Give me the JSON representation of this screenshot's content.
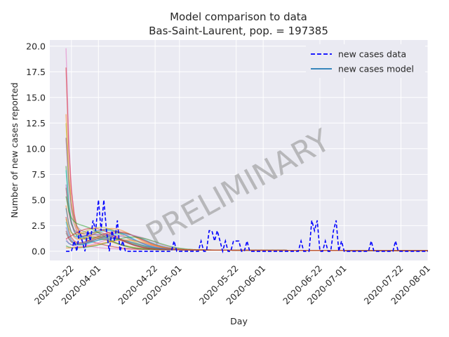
{
  "chart_data": {
    "type": "line",
    "title_line1": "Model comparison to data",
    "title_line2": "Bas-Saint-Laurent, pop. = 197385",
    "xlabel": "Day",
    "ylabel": "Number of new cases reported",
    "watermark": "PRELIMINARY",
    "x_start": "2020-03-14",
    "x_end": "2020-08-01",
    "ylim": [
      -0.9,
      20.6
    ],
    "y_ticks": [
      "0.0",
      "2.5",
      "5.0",
      "7.5",
      "10.0",
      "12.5",
      "15.0",
      "17.5",
      "20.0"
    ],
    "x_ticks": [
      "2020-03-22",
      "2020-04-01",
      "2020-04-22",
      "2020-05-01",
      "2020-05-22",
      "2020-06-01",
      "2020-06-22",
      "2020-07-01",
      "2020-07-22",
      "2020-08-01"
    ],
    "grid": true,
    "legend_position": "top-right",
    "legend": [
      {
        "label": "new cases data",
        "style": "dashed",
        "color": "#0000ff"
      },
      {
        "label": "new cases model",
        "style": "solid",
        "color": "#1f77b4"
      }
    ],
    "data_series": {
      "name": "new cases data",
      "color": "#0000ff",
      "points": [
        [
          "2020-03-20",
          0
        ],
        [
          "2020-03-21",
          0
        ],
        [
          "2020-03-22",
          0
        ],
        [
          "2020-03-23",
          1
        ],
        [
          "2020-03-24",
          0
        ],
        [
          "2020-03-25",
          2
        ],
        [
          "2020-03-26",
          1
        ],
        [
          "2020-03-27",
          0
        ],
        [
          "2020-03-28",
          2
        ],
        [
          "2020-03-29",
          1
        ],
        [
          "2020-03-30",
          3
        ],
        [
          "2020-03-31",
          2
        ],
        [
          "2020-04-01",
          5
        ],
        [
          "2020-04-02",
          2
        ],
        [
          "2020-04-03",
          5
        ],
        [
          "2020-04-04",
          2
        ],
        [
          "2020-04-05",
          0
        ],
        [
          "2020-04-06",
          2
        ],
        [
          "2020-04-07",
          1
        ],
        [
          "2020-04-08",
          3
        ],
        [
          "2020-04-09",
          0
        ],
        [
          "2020-04-10",
          1
        ],
        [
          "2020-04-11",
          0
        ],
        [
          "2020-04-12",
          0
        ],
        [
          "2020-04-13",
          0
        ],
        [
          "2020-04-15",
          0
        ],
        [
          "2020-04-20",
          0
        ],
        [
          "2020-04-25",
          0
        ],
        [
          "2020-04-28",
          0
        ],
        [
          "2020-04-29",
          1
        ],
        [
          "2020-04-30",
          0
        ],
        [
          "2020-05-05",
          0
        ],
        [
          "2020-05-08",
          0
        ],
        [
          "2020-05-09",
          1
        ],
        [
          "2020-05-10",
          0
        ],
        [
          "2020-05-11",
          0
        ],
        [
          "2020-05-12",
          2
        ],
        [
          "2020-05-13",
          2
        ],
        [
          "2020-05-14",
          1
        ],
        [
          "2020-05-15",
          2
        ],
        [
          "2020-05-16",
          1
        ],
        [
          "2020-05-17",
          0
        ],
        [
          "2020-05-18",
          1
        ],
        [
          "2020-05-19",
          0
        ],
        [
          "2020-05-20",
          0
        ],
        [
          "2020-05-21",
          1
        ],
        [
          "2020-05-22",
          1
        ],
        [
          "2020-05-23",
          1
        ],
        [
          "2020-05-24",
          0
        ],
        [
          "2020-05-25",
          0
        ],
        [
          "2020-05-26",
          1
        ],
        [
          "2020-05-27",
          0
        ],
        [
          "2020-06-05",
          0
        ],
        [
          "2020-06-10",
          0
        ],
        [
          "2020-06-14",
          0
        ],
        [
          "2020-06-15",
          1
        ],
        [
          "2020-06-16",
          0
        ],
        [
          "2020-06-18",
          0
        ],
        [
          "2020-06-19",
          3
        ],
        [
          "2020-06-20",
          2
        ],
        [
          "2020-06-21",
          3
        ],
        [
          "2020-06-22",
          0
        ],
        [
          "2020-06-23",
          0
        ],
        [
          "2020-06-24",
          1
        ],
        [
          "2020-06-25",
          0
        ],
        [
          "2020-06-26",
          0
        ],
        [
          "2020-06-27",
          2
        ],
        [
          "2020-06-28",
          3
        ],
        [
          "2020-06-29",
          0
        ],
        [
          "2020-06-30",
          1
        ],
        [
          "2020-07-01",
          0
        ],
        [
          "2020-07-05",
          0
        ],
        [
          "2020-07-10",
          0
        ],
        [
          "2020-07-11",
          1
        ],
        [
          "2020-07-12",
          0
        ],
        [
          "2020-07-17",
          0
        ],
        [
          "2020-07-19",
          0
        ],
        [
          "2020-07-20",
          1
        ],
        [
          "2020-07-21",
          0
        ],
        [
          "2020-07-25",
          0
        ],
        [
          "2020-08-01",
          0
        ]
      ]
    },
    "model_series": {
      "name": "new cases model",
      "color": "#1f77b4",
      "note_fan": "ensemble of model trajectories",
      "trajectories": [
        {
          "color": "#e377c2",
          "start": 19.5,
          "peak": 0.3,
          "peak_day": "2020-03-20"
        },
        {
          "color": "#d62728",
          "start": 17.2,
          "peak": 0.8,
          "peak_day": "2020-03-24"
        },
        {
          "color": "#ff7f0e",
          "start": 12.6,
          "peak": 1.2,
          "peak_day": "2020-03-28"
        },
        {
          "color": "#bcbd22",
          "start": 12.0,
          "peak": 1.0,
          "peak_day": "2020-03-30"
        },
        {
          "color": "#e377c2",
          "start": 10.6,
          "peak": 1.4,
          "peak_day": "2020-04-02"
        },
        {
          "color": "#7f7f7f",
          "start": 10.0,
          "peak": 1.5,
          "peak_day": "2020-03-27"
        },
        {
          "color": "#2ca02c",
          "start": 8.0,
          "peak": 1.2,
          "peak_day": "2020-04-03"
        },
        {
          "color": "#17becf",
          "start": 7.6,
          "peak": 1.8,
          "peak_day": "2020-04-05"
        },
        {
          "color": "#9467bd",
          "start": 6.0,
          "peak": 1.4,
          "peak_day": "2020-04-01"
        },
        {
          "color": "#8c564b",
          "start": 5.5,
          "peak": 1.6,
          "peak_day": "2020-03-31"
        },
        {
          "color": "#ff7f0e",
          "start": 4.2,
          "peak": 2.0,
          "peak_day": "2020-04-06"
        },
        {
          "color": "#1f77b4",
          "start": 3.8,
          "peak": 1.9,
          "peak_day": "2020-04-04"
        },
        {
          "color": "#2ca02c",
          "start": 3.5,
          "peak": 2.2,
          "peak_day": "2020-03-25"
        },
        {
          "color": "#d62728",
          "start": 3.2,
          "peak": 1.7,
          "peak_day": "2020-04-08"
        },
        {
          "color": "#17becf",
          "start": 2.8,
          "peak": 1.5,
          "peak_day": "2020-04-10"
        },
        {
          "color": "#bcbd22",
          "start": 2.5,
          "peak": 2.1,
          "peak_day": "2020-04-02"
        },
        {
          "color": "#9467bd",
          "start": 2.2,
          "peak": 1.3,
          "peak_day": "2020-04-07"
        },
        {
          "color": "#8c564b",
          "start": 1.9,
          "peak": 1.6,
          "peak_day": "2020-04-09"
        },
        {
          "color": "#7f7f7f",
          "start": 1.6,
          "peak": 1.1,
          "peak_day": "2020-04-05"
        },
        {
          "color": "#e377c2",
          "start": 1.2,
          "peak": 1.4,
          "peak_day": "2020-04-12"
        },
        {
          "color": "#1f77b4",
          "start": 0.9,
          "peak": 1.0,
          "peak_day": "2020-04-06"
        },
        {
          "color": "#2ca02c",
          "start": 0.5,
          "peak": 1.2,
          "peak_day": "2020-04-14"
        },
        {
          "color": "#ff7f0e",
          "start": 0.3,
          "peak": 0.9,
          "peak_day": "2020-04-11"
        },
        {
          "color": "#d62728",
          "start": 0.2,
          "peak": 2.0,
          "peak_day": "2020-03-30"
        }
      ]
    }
  }
}
